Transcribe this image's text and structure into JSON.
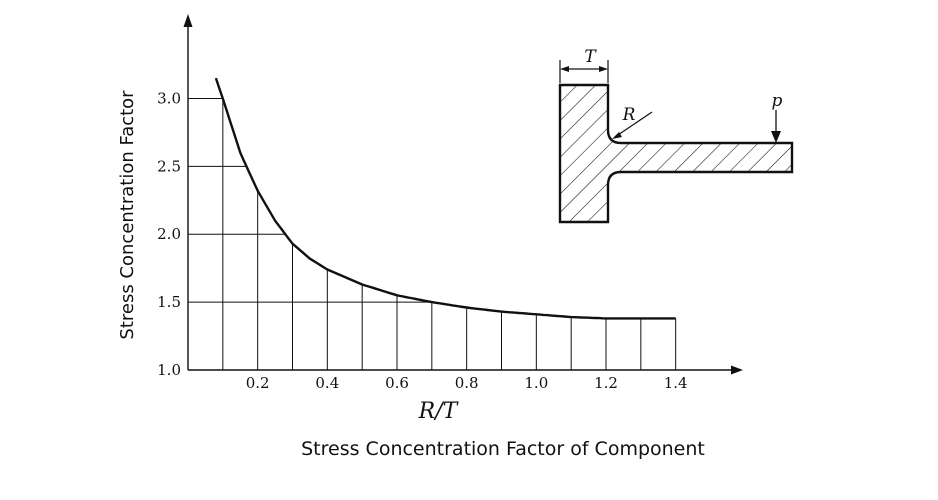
{
  "caption": "Stress Concentration Factor of Component",
  "chart_data": {
    "type": "line",
    "xlabel": "R/T",
    "ylabel": "Stress Concentration Factor",
    "x_ticks": [
      "0.2",
      "0.4",
      "0.6",
      "0.8",
      "1.0",
      "1.2",
      "1.4"
    ],
    "y_ticks": [
      "1.0",
      "1.5",
      "2.0",
      "2.5",
      "3.0"
    ],
    "xlim": [
      0,
      1.5
    ],
    "ylim": [
      1.0,
      3.6
    ],
    "grid": true,
    "series": [
      {
        "x": [
          0.08,
          0.1,
          0.15,
          0.2,
          0.25,
          0.3,
          0.35,
          0.4,
          0.5,
          0.6,
          0.7,
          0.8,
          0.9,
          1.0,
          1.1,
          1.2,
          1.3,
          1.4
        ],
        "values": [
          3.15,
          3.0,
          2.6,
          2.32,
          2.1,
          1.93,
          1.82,
          1.74,
          1.63,
          1.55,
          1.5,
          1.46,
          1.43,
          1.41,
          1.39,
          1.38,
          1.38,
          1.38
        ]
      }
    ]
  },
  "inset": {
    "label_T": "T",
    "label_R": "R",
    "label_p": "p"
  }
}
